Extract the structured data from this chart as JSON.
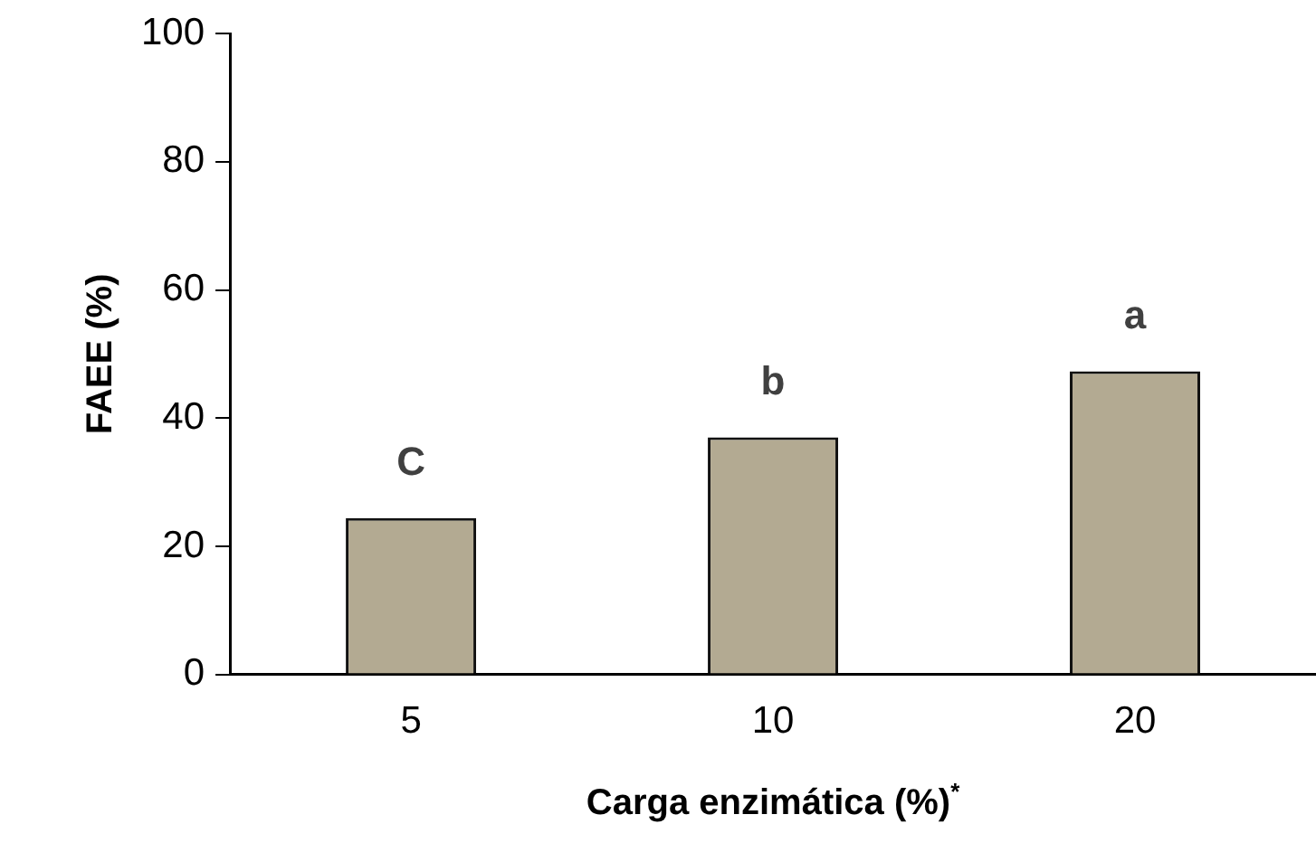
{
  "chart_data": {
    "type": "bar",
    "xlabel": "Carga enzimática (%)$^{*}$",
    "ylabel": "FAEE (%)",
    "categories": [
      "5",
      "10",
      "20"
    ],
    "values": [
      24.4,
      37.0,
      47.3
    ],
    "color": "#b3aa92",
    "ylim": [
      0,
      100
    ],
    "yticks": [
      0,
      20,
      40,
      60,
      80,
      100
    ],
    "grid": false,
    "legend": false,
    "annotations": [
      {
        "text": "C",
        "x": "5",
        "y": 24.4
      },
      {
        "text": "b",
        "x": "10",
        "y": 37.0
      },
      {
        "text": "a",
        "x": "20",
        "y": 47.3
      }
    ]
  }
}
